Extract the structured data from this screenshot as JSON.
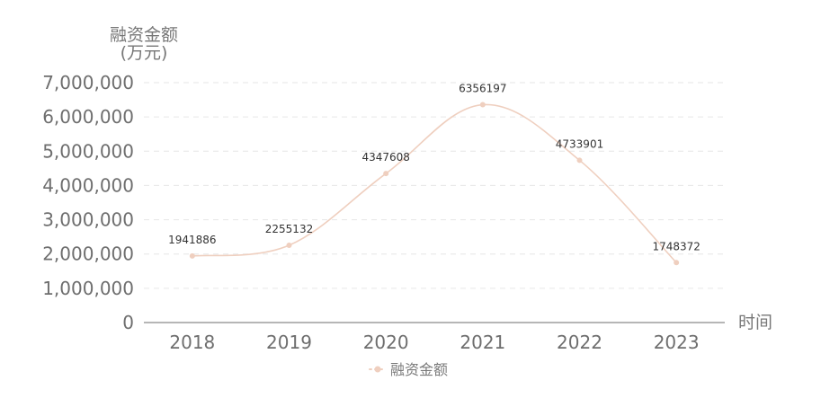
{
  "colors": {
    "series": "#efcfbf",
    "grid": "#e6e6e6",
    "axis": "#6e6e6e"
  },
  "chart_data": {
    "type": "line",
    "title": "",
    "ylabel": "融资金额",
    "ylabel_unit": "(万元)",
    "xlabel": "时间",
    "categories": [
      "2018",
      "2019",
      "2020",
      "2021",
      "2022",
      "2023"
    ],
    "y_ticks": [
      "0",
      "1,000,000",
      "2,000,000",
      "3,000,000",
      "4,000,000",
      "5,000,000",
      "6,000,000",
      "7,000,000"
    ],
    "ylim": [
      0,
      7000000
    ],
    "grid": true,
    "smooth": true,
    "legend_position": "bottom-center",
    "series": [
      {
        "name": "融资金额",
        "values": [
          1941886,
          2255132,
          4347608,
          6356197,
          4733901,
          1748372
        ],
        "data_labels": [
          "1941886",
          "2255132",
          "4347608",
          "6356197",
          "4733901",
          "1748372"
        ]
      }
    ]
  }
}
